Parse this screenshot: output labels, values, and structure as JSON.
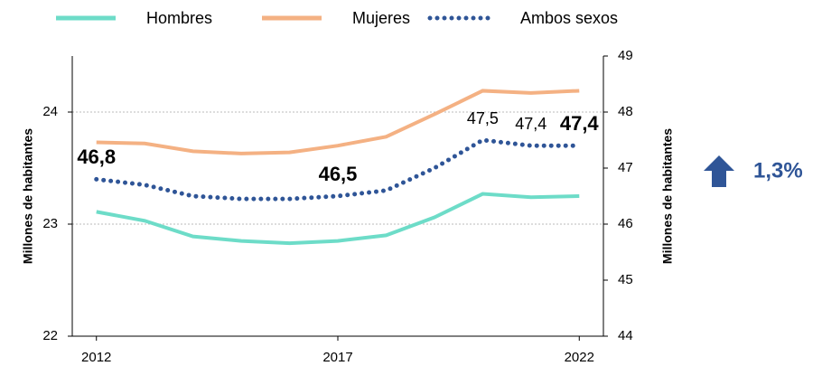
{
  "chart_data": {
    "type": "line",
    "x": [
      2012,
      2013,
      2014,
      2015,
      2016,
      2017,
      2018,
      2019,
      2020,
      2021,
      2022
    ],
    "xlim": [
      2011.5,
      2022.5
    ],
    "xticks": [
      2012,
      2017,
      2022
    ],
    "ylim": [
      22,
      24.5
    ],
    "yticks": [
      22,
      23,
      24
    ],
    "y2lim": [
      44,
      49
    ],
    "y2ticks": [
      44,
      45,
      46,
      47,
      48,
      49
    ],
    "ylabel": "Millones de habitantes",
    "y2label": "Millones de habitantes",
    "grid": true,
    "legend": "top",
    "series": [
      {
        "name": "Hombres",
        "color": "#6ddcc8",
        "line": "solid",
        "values": [
          23.11,
          23.03,
          22.89,
          22.85,
          22.83,
          22.85,
          22.9,
          23.06,
          23.27,
          23.24,
          23.25
        ]
      },
      {
        "name": "Mujeres",
        "color": "#f4b183",
        "line": "solid",
        "values": [
          23.73,
          23.72,
          23.65,
          23.63,
          23.64,
          23.7,
          23.78,
          23.98,
          24.19,
          24.17,
          24.19
        ]
      },
      {
        "name": "Ambos sexos",
        "color": "#2f5597",
        "line": "dotted",
        "axis": "y2",
        "values": [
          46.8,
          46.7,
          46.5,
          46.45,
          46.45,
          46.5,
          46.6,
          47.0,
          47.5,
          47.4,
          47.4
        ],
        "value_labels": [
          "46,8",
          null,
          null,
          null,
          null,
          "46,5",
          null,
          null,
          "47,5",
          "47,4",
          "47,4"
        ],
        "value_labels_bold": [
          true,
          false,
          false,
          false,
          false,
          true,
          false,
          false,
          false,
          false,
          true
        ]
      }
    ],
    "annotation": {
      "text": "1,3%",
      "color": "#2f5597"
    }
  }
}
